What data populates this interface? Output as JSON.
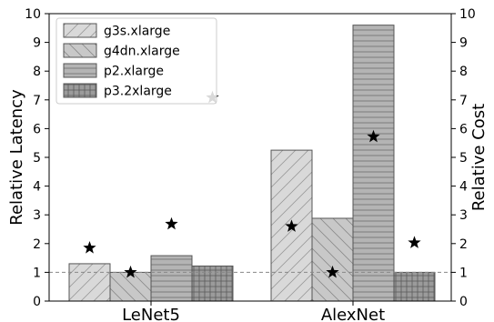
{
  "chart_data": {
    "type": "bar",
    "categories": [
      "LeNet5",
      "AlexNet"
    ],
    "series": [
      {
        "name": "g3s.xlarge",
        "latency": [
          1.3,
          5.25
        ],
        "cost": [
          1.85,
          2.6
        ],
        "color": "#d9d9d9",
        "hatch": "diag-up"
      },
      {
        "name": "g4dn.xlarge",
        "latency": [
          1.0,
          2.88
        ],
        "cost": [
          1.0,
          1.0
        ],
        "color": "#c8c8c8",
        "hatch": "diag-down"
      },
      {
        "name": "p2.xlarge",
        "latency": [
          1.58,
          9.6
        ],
        "cost": [
          2.68,
          5.72
        ],
        "color": "#b4b4b4",
        "hatch": "horizontal"
      },
      {
        "name": "p3.2xlarge",
        "latency": [
          1.22,
          1.0
        ],
        "cost": [
          7.08,
          2.03
        ],
        "color": "#9b9b9b",
        "hatch": "grid"
      }
    ],
    "ylabel_left": "Relative Latency",
    "ylabel_right": "Relative Cost",
    "ylim": [
      0,
      10
    ],
    "yticks": [
      "0",
      "1",
      "2",
      "3",
      "4",
      "5",
      "6",
      "7",
      "8",
      "9",
      "10"
    ],
    "reference_line": 1,
    "legend_position": "top-left",
    "star_color": "#000000"
  }
}
